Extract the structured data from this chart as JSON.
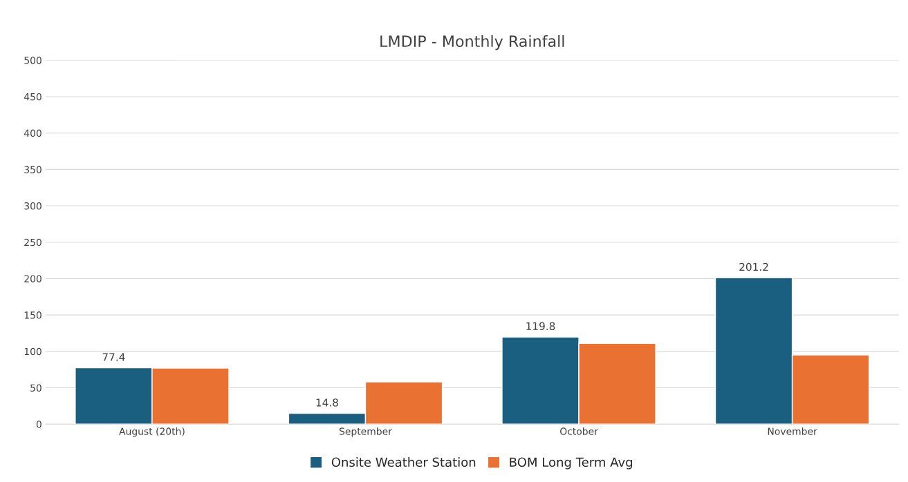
{
  "chart_data": {
    "type": "bar",
    "title": "LMDIP - Monthly Rainfall",
    "categories": [
      "August (20th)",
      "September",
      "October",
      "November"
    ],
    "series": [
      {
        "name": "Onsite Weather Station",
        "color": "#1a5e80",
        "values": [
          77.4,
          14.8,
          119.8,
          201.2
        ],
        "value_labels": [
          "77.4",
          "14.8",
          "119.8",
          "201.2"
        ]
      },
      {
        "name": "BOM Long Term Avg",
        "color": "#e97132",
        "values": [
          77,
          58,
          111,
          95
        ]
      }
    ],
    "ylim": [
      0,
      500
    ],
    "yticks": [
      0,
      50,
      100,
      150,
      200,
      250,
      300,
      350,
      400,
      450,
      500
    ],
    "grid": "y",
    "legend": "bottom"
  }
}
